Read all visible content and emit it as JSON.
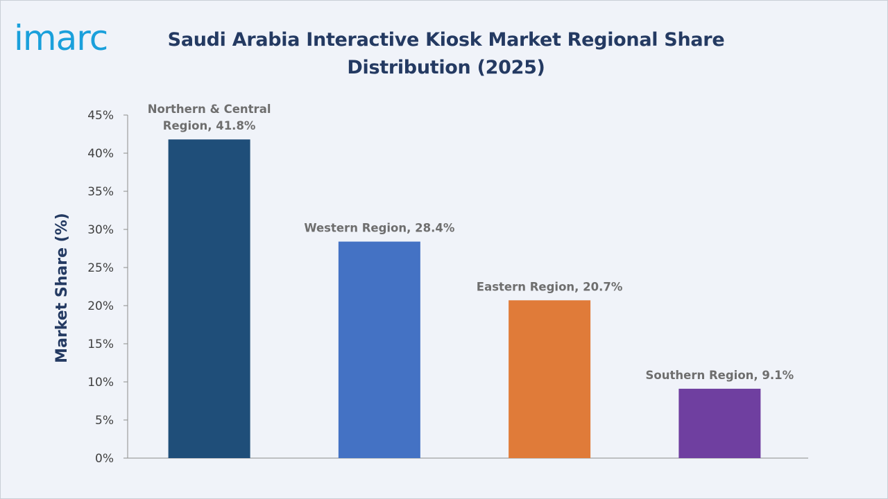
{
  "brand": {
    "logo_text": "imarc",
    "logo_color": "#1aa0db"
  },
  "title": "Saudi Arabia Interactive Kiosk Market Regional Share Distribution (2025)",
  "colors": {
    "background": "#f0f3f9",
    "title": "#243a62",
    "axis": "#8c8c8c",
    "tick_text": "#404040",
    "data_label": "#6e6e6e"
  },
  "chart_data": {
    "type": "bar",
    "title": "Saudi Arabia Interactive Kiosk Market Regional Share Distribution (2025)",
    "xlabel": "",
    "ylabel": "Market Share (%)",
    "ylim": [
      0,
      45
    ],
    "yticks": [
      0,
      5,
      10,
      15,
      20,
      25,
      30,
      35,
      40,
      45
    ],
    "ytick_labels": [
      "0%",
      "5%",
      "10%",
      "15%",
      "20%",
      "25%",
      "30%",
      "35%",
      "40%",
      "45%"
    ],
    "grid": false,
    "legend": "none",
    "categories": [
      "Northern & Central Region",
      "Western Region",
      "Eastern Region",
      "Southern Region"
    ],
    "values": [
      41.8,
      28.4,
      20.7,
      9.1
    ],
    "colors": [
      "#1f4e79",
      "#4472c4",
      "#e07b39",
      "#6f3fa0"
    ],
    "data_labels": [
      [
        "Northern & Central",
        "Region, 41.8%"
      ],
      [
        "Western Region, 28.4%"
      ],
      [
        "Eastern Region, 20.7%"
      ],
      [
        "Southern Region, 9.1%"
      ]
    ]
  }
}
